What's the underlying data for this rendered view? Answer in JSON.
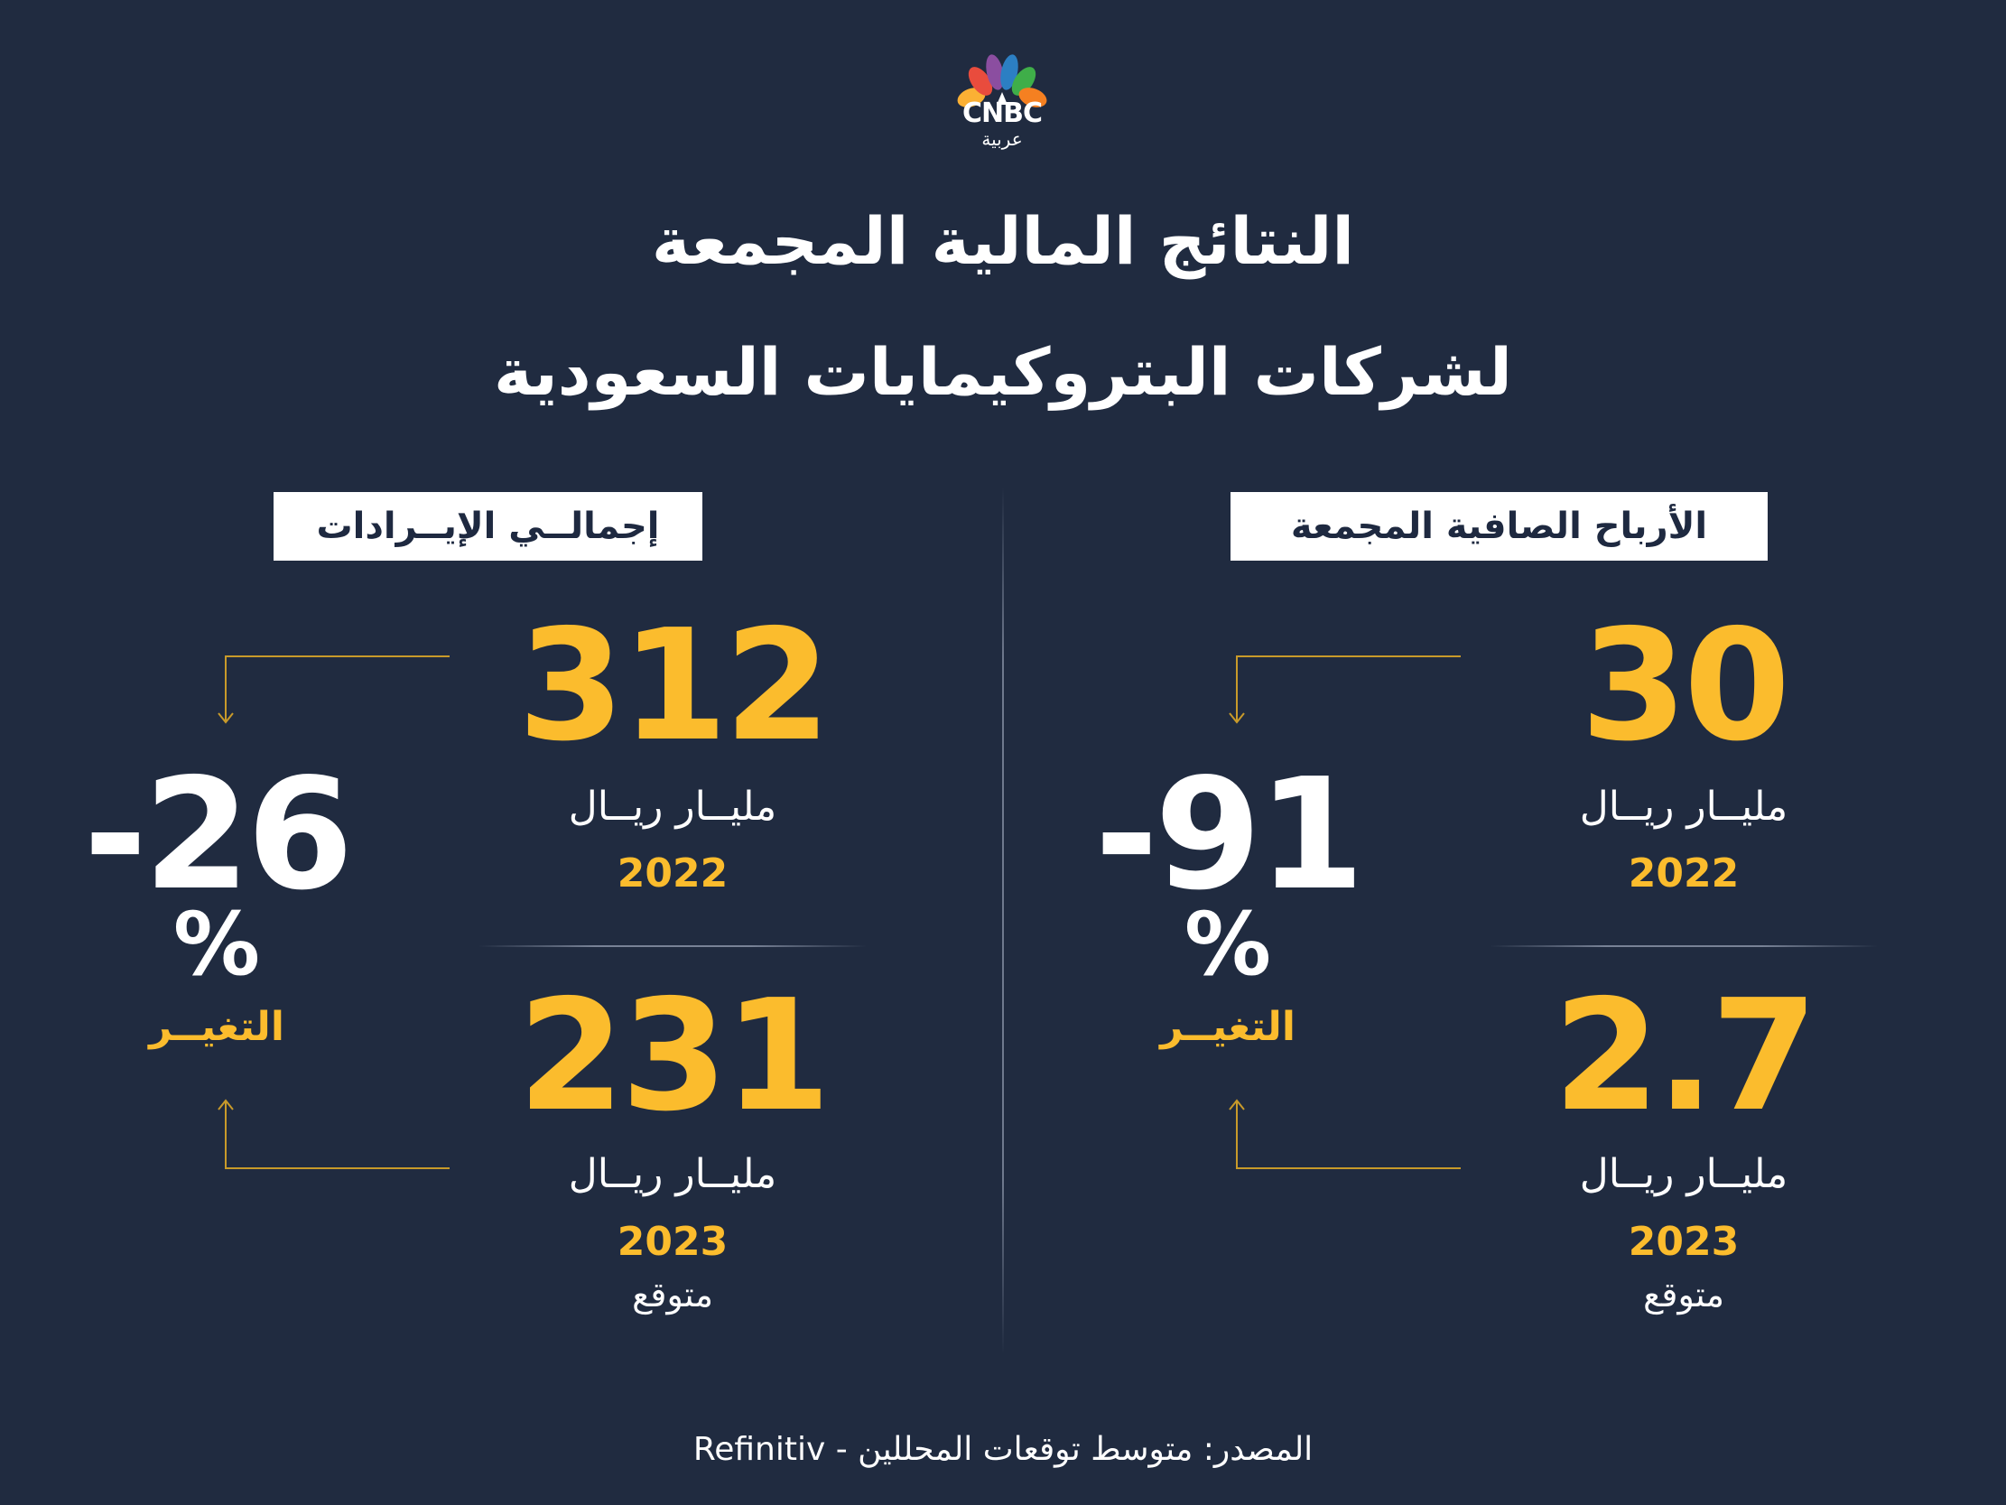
{
  "brand": {
    "name": "CNBC",
    "sub": "عربية",
    "colors": [
      "#fbb034",
      "#e94c3d",
      "#8b4ea0",
      "#2c7fc3",
      "#3fae49",
      "#f58021"
    ]
  },
  "title": {
    "line1": "النتائج المالية المجمعة",
    "line2": "لشركات البتروكيمايات السعودية"
  },
  "panels": {
    "revenue": {
      "label": "إجمالــي الإيــرادات",
      "value_2022": "312",
      "unit_2022": "مليــار ريــال",
      "year_2022": "2022",
      "value_2023": "231",
      "unit_2023": "مليــار ريــال",
      "year_2023": "2023",
      "note_2023": "متوقع",
      "change_value": "-26",
      "change_sign": "%",
      "change_label": "التغيــر"
    },
    "profit": {
      "label": "الأرباح الصافية المجمعة",
      "value_2022": "30",
      "unit_2022": "مليــار ريــال",
      "year_2022": "2022",
      "value_2023": "2.7",
      "unit_2023": "مليــار ريــال",
      "year_2023": "2023",
      "note_2023": "متوقع",
      "change_value": "-91",
      "change_sign": "%",
      "change_label": "التغيــر"
    }
  },
  "source": "المصدر: متوسط توقعات المحللين - Refinitiv",
  "accent": "#fbbc2d",
  "background": "#202b40"
}
